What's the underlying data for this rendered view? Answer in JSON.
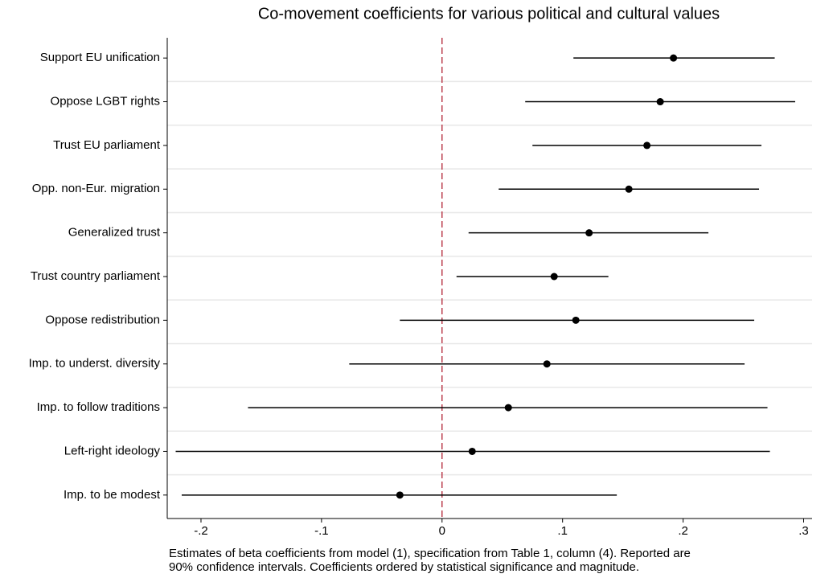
{
  "chart_data": {
    "type": "coefplot",
    "title": "Co-movement coefficients for various political and cultural values",
    "categories": [
      "Support EU unification",
      "Oppose LGBT rights",
      "Trust EU parliament",
      "Opp. non-Eur. migration",
      "Generalized trust",
      "Trust country parliament",
      "Oppose redistribution",
      "Imp. to underst. diversity",
      "Imp. to follow traditions",
      "Left-right ideology",
      "Imp. to be modest"
    ],
    "values": [
      0.192,
      0.181,
      0.17,
      0.155,
      0.122,
      0.093,
      0.111,
      0.087,
      0.055,
      0.025,
      -0.035
    ],
    "ci_low": [
      0.109,
      0.069,
      0.075,
      0.047,
      0.022,
      0.012,
      -0.035,
      -0.077,
      -0.161,
      -0.221,
      -0.216
    ],
    "ci_high": [
      0.276,
      0.293,
      0.265,
      0.263,
      0.221,
      0.138,
      0.259,
      0.251,
      0.27,
      0.272,
      0.145
    ],
    "color": "#000000",
    "xline": 0,
    "xline_color": "#b22234",
    "xlim": [
      -0.228,
      0.307
    ],
    "xticks": [
      {
        "value": -0.2,
        "label": "-.2"
      },
      {
        "value": -0.1,
        "label": "-.1"
      },
      0,
      {
        "value": 0.1,
        "label": ".1"
      },
      {
        "value": 0.2,
        "label": ".2"
      },
      {
        "value": 0.3,
        "label": ".3"
      }
    ],
    "note": [
      "Estimates of beta coefficients from model (1), specification from Table 1, column (4). Reported are",
      "90% confidence intervals. Coefficients ordered by statistical significance and magnitude."
    ]
  }
}
